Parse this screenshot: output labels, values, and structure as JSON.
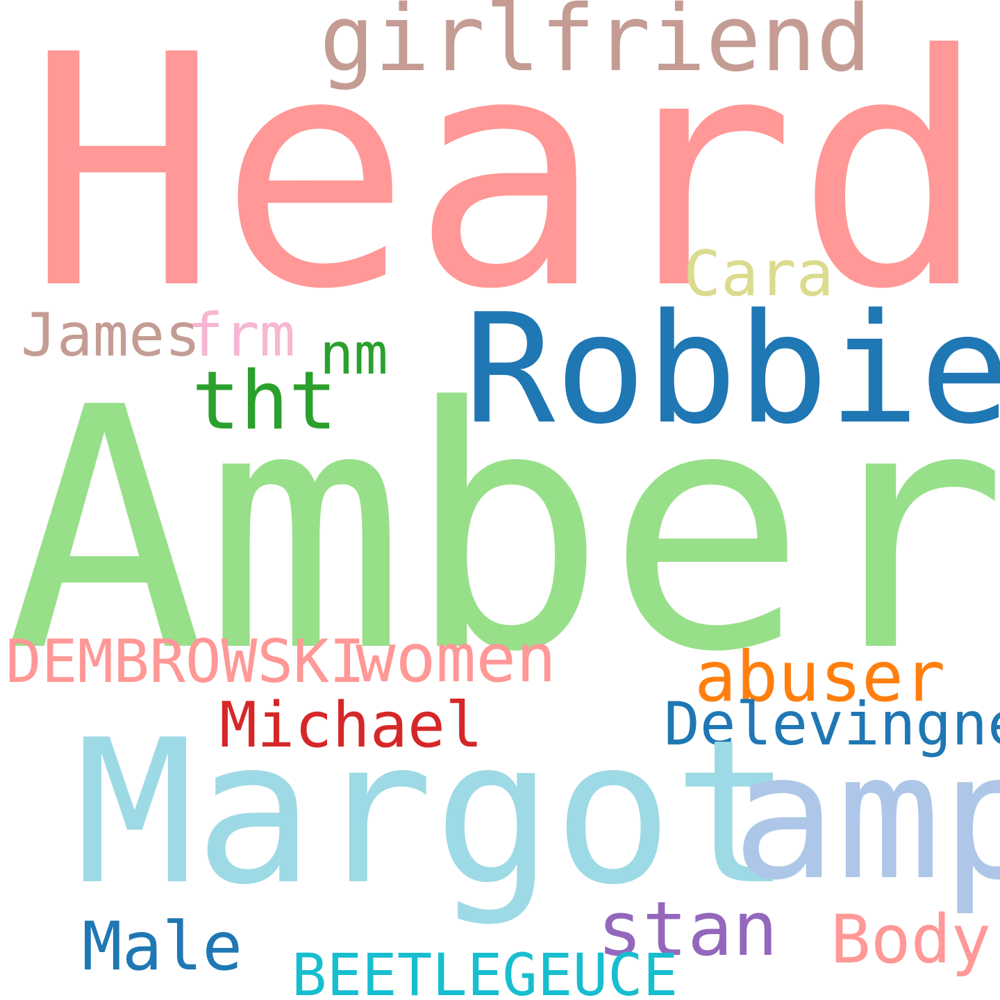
{
  "words": {
    "heard": {
      "text": "Heard",
      "color": "#ff9896"
    },
    "amber": {
      "text": "Amber",
      "color": "#98df8a"
    },
    "girlfriend": {
      "text": "girlfriend",
      "color": "#c49c94"
    },
    "robbie": {
      "text": "Robbie",
      "color": "#1f77b4"
    },
    "cara": {
      "text": "Cara",
      "color": "#dbdb8d"
    },
    "james": {
      "text": "James",
      "color": "#c49c94"
    },
    "frm": {
      "text": "frm",
      "color": "#f7b6d2"
    },
    "nm": {
      "text": "nm",
      "color": "#2ca02c"
    },
    "tht": {
      "text": "tht",
      "color": "#2ca02c"
    },
    "dembrowski": {
      "text": "DEMBROWSKI",
      "color": "#ff9896"
    },
    "women": {
      "text": "women",
      "color": "#ff9896"
    },
    "abuser": {
      "text": "abuser",
      "color": "#ff7f0e"
    },
    "michael": {
      "text": "Michael",
      "color": "#d62728"
    },
    "delevingne": {
      "text": "Delevingne",
      "color": "#1f77b4"
    },
    "margot": {
      "text": "Margot",
      "color": "#9edae5"
    },
    "amp": {
      "text": "amp",
      "color": "#aec7e8"
    },
    "stan": {
      "text": "stan",
      "color": "#9467bd"
    },
    "body": {
      "text": "Body",
      "color": "#ff9896"
    },
    "male": {
      "text": "Male",
      "color": "#1f77b4"
    },
    "beetlegeuce": {
      "text": "BEETLEGEUCE",
      "color": "#17becf"
    }
  }
}
